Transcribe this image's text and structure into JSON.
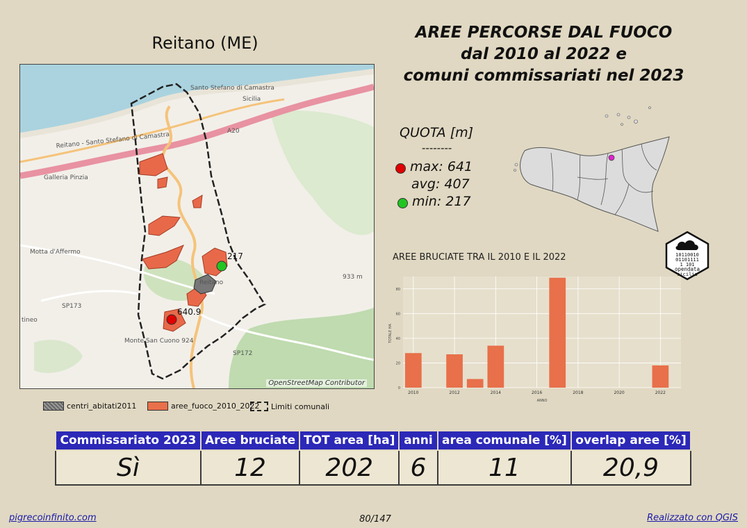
{
  "map_title": "Reitano (ME)",
  "main_title": {
    "line1": "AREE PERCORSE DAL FUOCO",
    "line2": "dal 2010 al 2022 e",
    "line3": "comuni commissariati nel 2023"
  },
  "map": {
    "attribution": "OpenStreetMap Contributor",
    "place_labels": [
      "Santo Stefano di Camastra",
      "Motta d'Affermo",
      "Monte San Cuono 924",
      "Reitano",
      "Sicilia",
      "A20",
      "SP173",
      "SP172",
      "933 m",
      "tineo",
      "Galleria Pinzia",
      "Reitano - Santo Stefano di Camastra"
    ],
    "point_max_label": "640.9",
    "point_min_label": "217"
  },
  "legend": {
    "centri": "centri_abitati2011",
    "aree": "aree_fuoco_2010_2022",
    "limiti": "Limiti comunali"
  },
  "quota": {
    "title": "QUOTA [m]",
    "divider": "--------",
    "max": "max: 641",
    "avg": "avg: 407",
    "min": "min: 217",
    "max_color": "#e00000",
    "min_color": "#22c422"
  },
  "logo": {
    "lines": [
      "10110010",
      "01101111",
      "1  101",
      "opendata",
      "sicilia"
    ]
  },
  "chart_data": {
    "type": "bar",
    "title": "AREE BRUCIATE TRA IL 2010 E IL 2022",
    "xlabel": "ANNO",
    "ylabel": "TOTALE HA",
    "xlim": [
      2009.5,
      2023
    ],
    "ylim": [
      0,
      90
    ],
    "x_ticks": [
      "2010",
      "2012",
      "2014",
      "2016",
      "2018",
      "2020",
      "2022"
    ],
    "y_ticks": [
      "0",
      "20",
      "40",
      "60",
      "80"
    ],
    "x": [
      2010,
      2012,
      2013,
      2014,
      2017,
      2022
    ],
    "values": [
      28,
      27,
      7,
      34,
      89,
      18
    ],
    "bar_color": "#e8704a",
    "grid": true
  },
  "table": {
    "headers": [
      "Commissariato 2023",
      "Aree bruciate",
      "TOT area [ha]",
      "anni",
      "area comunale [%]",
      "overlap aree [%]"
    ],
    "values": [
      "Sì",
      "12",
      "202",
      "6",
      "11",
      "20,9"
    ]
  },
  "footer": {
    "left": "pigrecoinfinito.com",
    "center": "80/147",
    "right": "Realizzato con QGIS"
  }
}
